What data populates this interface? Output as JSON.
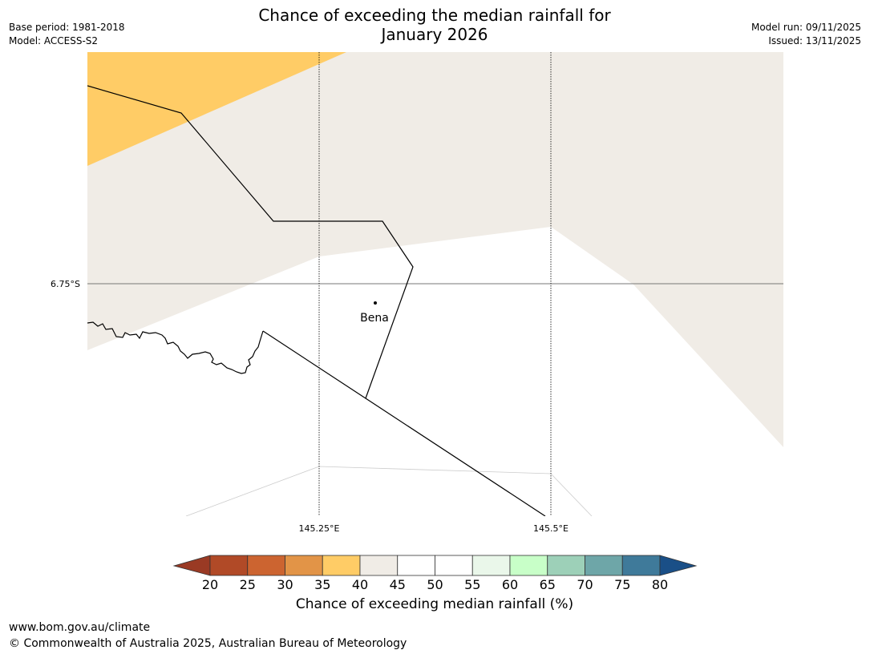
{
  "header": {
    "title_line1": "Chance of exceeding the median rainfall for",
    "title_line2": "January 2026",
    "base_period": "Base period: 1981-2018",
    "model": "Model: ACCESS-S2",
    "model_run": "Model run: 09/11/2025",
    "issued": "Issued: 13/11/2025"
  },
  "map": {
    "lat_label": "6.75°S",
    "lon_labels": [
      "145.25°E",
      "145.5°E"
    ],
    "place": {
      "name": "Bena"
    }
  },
  "colorbar": {
    "title": "Chance of exceeding median rainfall (%)",
    "ticks": [
      "20",
      "25",
      "30",
      "35",
      "40",
      "45",
      "50",
      "55",
      "60",
      "65",
      "70",
      "75",
      "80"
    ],
    "colors": {
      "below20": "#9a3a24",
      "bins": [
        "#b14a27",
        "#cc6430",
        "#e29447",
        "#ffcc66",
        "#f0ece6",
        "#ffffff",
        "#ffffff",
        "#eaf7ea",
        "#c8ffc8",
        "#9dd0b8",
        "#6ea6a8",
        "#3f7a9a"
      ],
      "above80": "#1a4f87"
    }
  },
  "footer": {
    "url": "www.bom.gov.au/climate",
    "copyright": "© Commonwealth of Australia 2025, Australian Bureau of Meteorology"
  }
}
